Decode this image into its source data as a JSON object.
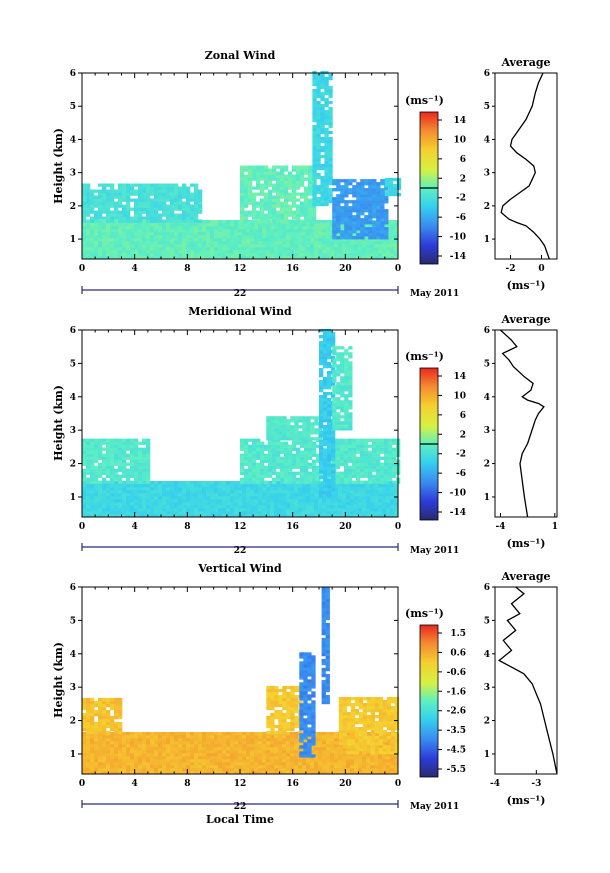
{
  "panels": [
    {
      "id": "zonal",
      "title": "Zonal Wind",
      "colorbar": {
        "unit": "(ms⁻¹)",
        "ticks": [
          "14",
          "10",
          "6",
          "2",
          "-2",
          "-6",
          "-10",
          "-14"
        ],
        "range": [
          -16,
          16
        ]
      },
      "average": {
        "title": "Average",
        "unit": "(ms⁻¹)",
        "xticks": [
          "-2",
          "0"
        ]
      }
    },
    {
      "id": "meridional",
      "title": "Meridional Wind",
      "colorbar": {
        "unit": "(ms⁻¹)",
        "ticks": [
          "14",
          "10",
          "6",
          "2",
          "-2",
          "-6",
          "-10",
          "-14"
        ],
        "range": [
          -16,
          16
        ]
      },
      "average": {
        "title": "Average",
        "unit": "(ms⁻¹)",
        "xticks": [
          "-4",
          "1"
        ]
      }
    },
    {
      "id": "vertical",
      "title": "Vertical Wind",
      "colorbar": {
        "unit": "(ms⁻¹)",
        "ticks": [
          "1.5",
          "0.6",
          "-0.6",
          "-1.6",
          "-2.6",
          "-3.5",
          "-4.5",
          "-5.5"
        ],
        "range": [
          -6,
          2
        ]
      },
      "average": {
        "title": "Average",
        "unit": "(ms⁻¹)",
        "xticks": [
          "-4",
          "-3"
        ]
      }
    }
  ],
  "shared": {
    "ylabel": "Height (km)",
    "xlabel": "Local Time",
    "date_day": "22",
    "date_month": "May 2011",
    "time_ticks": [
      "0",
      "4",
      "8",
      "12",
      "16",
      "20",
      "0"
    ],
    "height_ticks": [
      "1",
      "2",
      "3",
      "4",
      "5",
      "6"
    ]
  },
  "chart_data": [
    {
      "type": "heatmap",
      "title": "Zonal Wind",
      "xlabel": "",
      "ylabel": "Height (km)",
      "x_range_hours": [
        0,
        24
      ],
      "ylim": [
        0.4,
        6
      ],
      "value_range": [
        -16,
        16
      ],
      "regions": [
        {
          "x": [
            0,
            24
          ],
          "y": [
            0.4,
            1.5
          ],
          "value": 0
        },
        {
          "x": [
            0,
            9
          ],
          "y": [
            1.5,
            2.6
          ],
          "value": -2
        },
        {
          "x": [
            12,
            17.5
          ],
          "y": [
            1.5,
            3.2
          ],
          "value": 0
        },
        {
          "x": [
            17.5,
            19
          ],
          "y": [
            2.0,
            6.0
          ],
          "value": -3
        },
        {
          "x": [
            19,
            23
          ],
          "y": [
            1.0,
            2.8
          ],
          "value": -7
        },
        {
          "x": [
            23,
            24
          ],
          "y": [
            2.3,
            2.8
          ],
          "value": -3
        }
      ]
    },
    {
      "type": "line",
      "title": "Average",
      "xlabel": "(ms⁻¹)",
      "ylabel": "",
      "xlim": [
        -3,
        1
      ],
      "ylim": [
        0.4,
        6
      ],
      "x": [
        0.5,
        0.2,
        -0.1,
        -0.5,
        -1.0,
        -1.6,
        -2.1,
        -2.6,
        -2.5,
        -2.0,
        -1.4,
        -0.8,
        -0.6,
        -0.4,
        -0.5,
        -1.0,
        -1.6,
        -2.0,
        -1.9,
        -1.6,
        -1.0,
        -0.6,
        -0.4,
        -0.2,
        0.1
      ],
      "y": [
        0.4,
        0.8,
        1.0,
        1.2,
        1.4,
        1.5,
        1.6,
        1.8,
        2.0,
        2.2,
        2.4,
        2.6,
        2.8,
        3.0,
        3.2,
        3.4,
        3.6,
        3.8,
        4.0,
        4.2,
        4.6,
        5.0,
        5.4,
        5.7,
        6.0
      ]
    },
    {
      "type": "heatmap",
      "title": "Meridional Wind",
      "xlabel": "",
      "ylabel": "Height (km)",
      "x_range_hours": [
        0,
        24
      ],
      "ylim": [
        0.4,
        6
      ],
      "value_range": [
        -16,
        16
      ],
      "regions": [
        {
          "x": [
            0,
            24
          ],
          "y": [
            0.4,
            1.4
          ],
          "value": -3
        },
        {
          "x": [
            0,
            5
          ],
          "y": [
            1.4,
            2.7
          ],
          "value": -1
        },
        {
          "x": [
            12,
            24
          ],
          "y": [
            1.4,
            2.7
          ],
          "value": -1
        },
        {
          "x": [
            14,
            18
          ],
          "y": [
            2.7,
            3.4
          ],
          "value": -1
        },
        {
          "x": [
            18,
            19.2
          ],
          "y": [
            1.0,
            6.0
          ],
          "value": -4
        },
        {
          "x": [
            19,
            20.5
          ],
          "y": [
            3.0,
            5.5
          ],
          "value": -1
        }
      ]
    },
    {
      "type": "line",
      "title": "Average",
      "xlabel": "(ms⁻¹)",
      "ylabel": "",
      "xlim": [
        -4.5,
        1.2
      ],
      "ylim": [
        0.4,
        6
      ],
      "x": [
        -1.5,
        -1.8,
        -2.0,
        -2.2,
        -2.0,
        -1.5,
        -1.2,
        -1.0,
        -0.8,
        -0.5,
        0.0,
        -0.5,
        -1.5,
        -2.0,
        -1.2,
        -1.0,
        -1.8,
        -2.8,
        -3.2,
        -3.8,
        -2.5,
        -3.0,
        -4.0
      ],
      "y": [
        0.4,
        1.0,
        1.5,
        2.0,
        2.3,
        2.6,
        2.9,
        3.1,
        3.3,
        3.5,
        3.7,
        3.8,
        3.9,
        4.0,
        4.2,
        4.4,
        4.6,
        4.9,
        5.1,
        5.3,
        5.5,
        5.7,
        6.0
      ]
    },
    {
      "type": "heatmap",
      "title": "Vertical Wind",
      "xlabel": "Local Time",
      "ylabel": "Height (km)",
      "x_range_hours": [
        0,
        24
      ],
      "ylim": [
        0.4,
        6
      ],
      "value_range": [
        -6,
        2
      ],
      "regions": [
        {
          "x": [
            0,
            24
          ],
          "y": [
            0.4,
            1.6
          ],
          "value": 0.4
        },
        {
          "x": [
            0,
            3
          ],
          "y": [
            1.6,
            2.6
          ],
          "value": 0.2
        },
        {
          "x": [
            14,
            16.5
          ],
          "y": [
            1.6,
            3.0
          ],
          "value": 0.1
        },
        {
          "x": [
            16.5,
            17.5
          ],
          "y": [
            0.9,
            4.0
          ],
          "value": -4.0
        },
        {
          "x": [
            18.2,
            18.8
          ],
          "y": [
            2.5,
            6.0
          ],
          "value": -4.0
        },
        {
          "x": [
            19.5,
            24
          ],
          "y": [
            1.0,
            2.7
          ],
          "value": 0.1
        }
      ]
    },
    {
      "type": "line",
      "title": "Average",
      "xlabel": "(ms⁻¹)",
      "ylabel": "",
      "xlim": [
        -4,
        -2.5
      ],
      "ylim": [
        0.4,
        6
      ],
      "x": [
        -2.5,
        -2.6,
        -2.7,
        -2.8,
        -2.9,
        -3.0,
        -3.1,
        -3.3,
        -3.6,
        -3.9,
        -3.6,
        -3.8,
        -3.5,
        -3.7,
        -3.4,
        -3.6,
        -3.3,
        -3.5
      ],
      "y": [
        0.4,
        1.0,
        1.5,
        2.0,
        2.5,
        2.8,
        3.1,
        3.4,
        3.6,
        3.8,
        4.1,
        4.4,
        4.7,
        5.0,
        5.2,
        5.5,
        5.8,
        6.0
      ]
    }
  ]
}
